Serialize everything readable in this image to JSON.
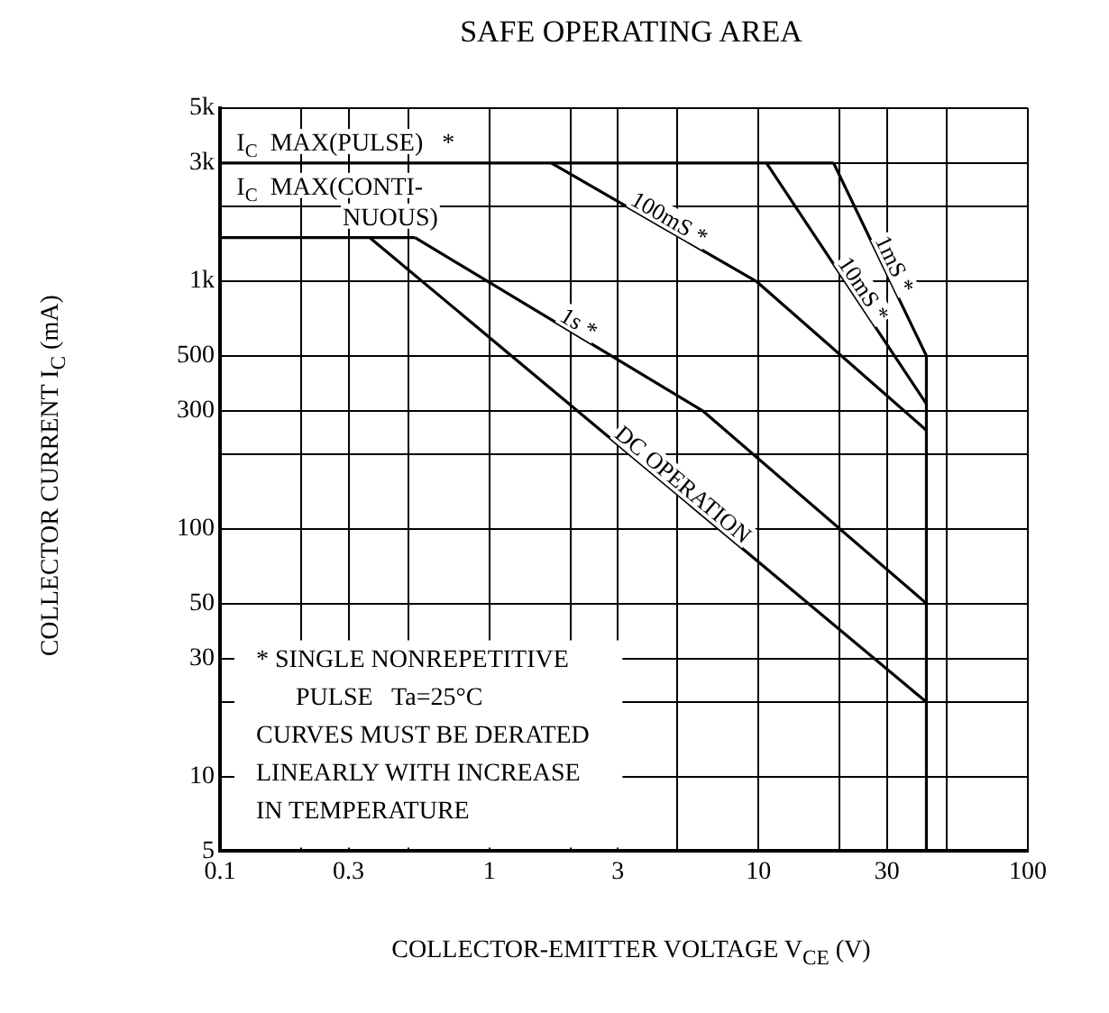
{
  "chart_data": {
    "type": "line",
    "title": "SAFE OPERATING AREA",
    "xlabel": "COLLECTOR-EMITTER VOLTAGE V$_{CE}$  (V)",
    "ylabel": "COLLECTOR CURRENT I$_{C}$  (mA)",
    "log": "xy",
    "xlim": [
      0.1,
      100
    ],
    "ylim": [
      5,
      5000
    ],
    "xticks": [
      0.1,
      {
        "value": 0.2,
        "label": null
      },
      0.3,
      {
        "value": 0.5,
        "label": null
      },
      1,
      {
        "value": 2,
        "label": null
      },
      3,
      {
        "value": 5,
        "label": null
      },
      10,
      {
        "value": 20,
        "label": null
      },
      30,
      {
        "value": 50,
        "label": null
      },
      100
    ],
    "yticks": [
      5,
      10,
      {
        "value": 20,
        "label": null
      },
      30,
      50,
      100,
      {
        "value": 200,
        "label": null
      },
      300,
      500,
      {
        "value": 1000,
        "label": "1k"
      },
      {
        "value": 2000,
        "label": null
      },
      {
        "value": 3000,
        "label": "3k"
      },
      {
        "value": 5000,
        "label": "5k"
      }
    ],
    "grid": true,
    "legend": false,
    "marker": "none",
    "line_style": "solid",
    "series": [
      {
        "name": "I$_{C}$  MAX(PULSE)   *",
        "color": "#000000",
        "x": [
          0.1,
          19
        ],
        "values": [
          3000,
          3000
        ]
      },
      {
        "name": "1mS *",
        "color": "#000000",
        "x": [
          19,
          42,
          42
        ],
        "values": [
          3000,
          500,
          5
        ]
      },
      {
        "name": "10mS *",
        "color": "#000000",
        "x": [
          10.7,
          42
        ],
        "values": [
          3000,
          320
        ]
      },
      {
        "name": "100mS *",
        "color": "#000000",
        "x": [
          1.7,
          9.8,
          42
        ],
        "values": [
          3000,
          1000,
          250
        ]
      },
      {
        "name": "I$_{C}$  MAX(CONTI-\nNUOUS)",
        "color": "#000000",
        "x": [
          0.1,
          0.53
        ],
        "values": [
          1500,
          1500
        ]
      },
      {
        "name": "1s *",
        "color": "#000000",
        "x": [
          0.53,
          6.2,
          42
        ],
        "values": [
          1500,
          300,
          50
        ]
      },
      {
        "name": "DC OPERATION",
        "color": "#000000",
        "x": [
          0.36,
          42
        ],
        "values": [
          1500,
          20
        ]
      }
    ],
    "annotations": [
      "* SINGLE NONREPETITIVE",
      "PULSE   Ta=25°C",
      "CURVES MUST BE DERATED",
      "LINEARLY WITH INCREASE",
      "IN TEMPERATURE"
    ]
  }
}
